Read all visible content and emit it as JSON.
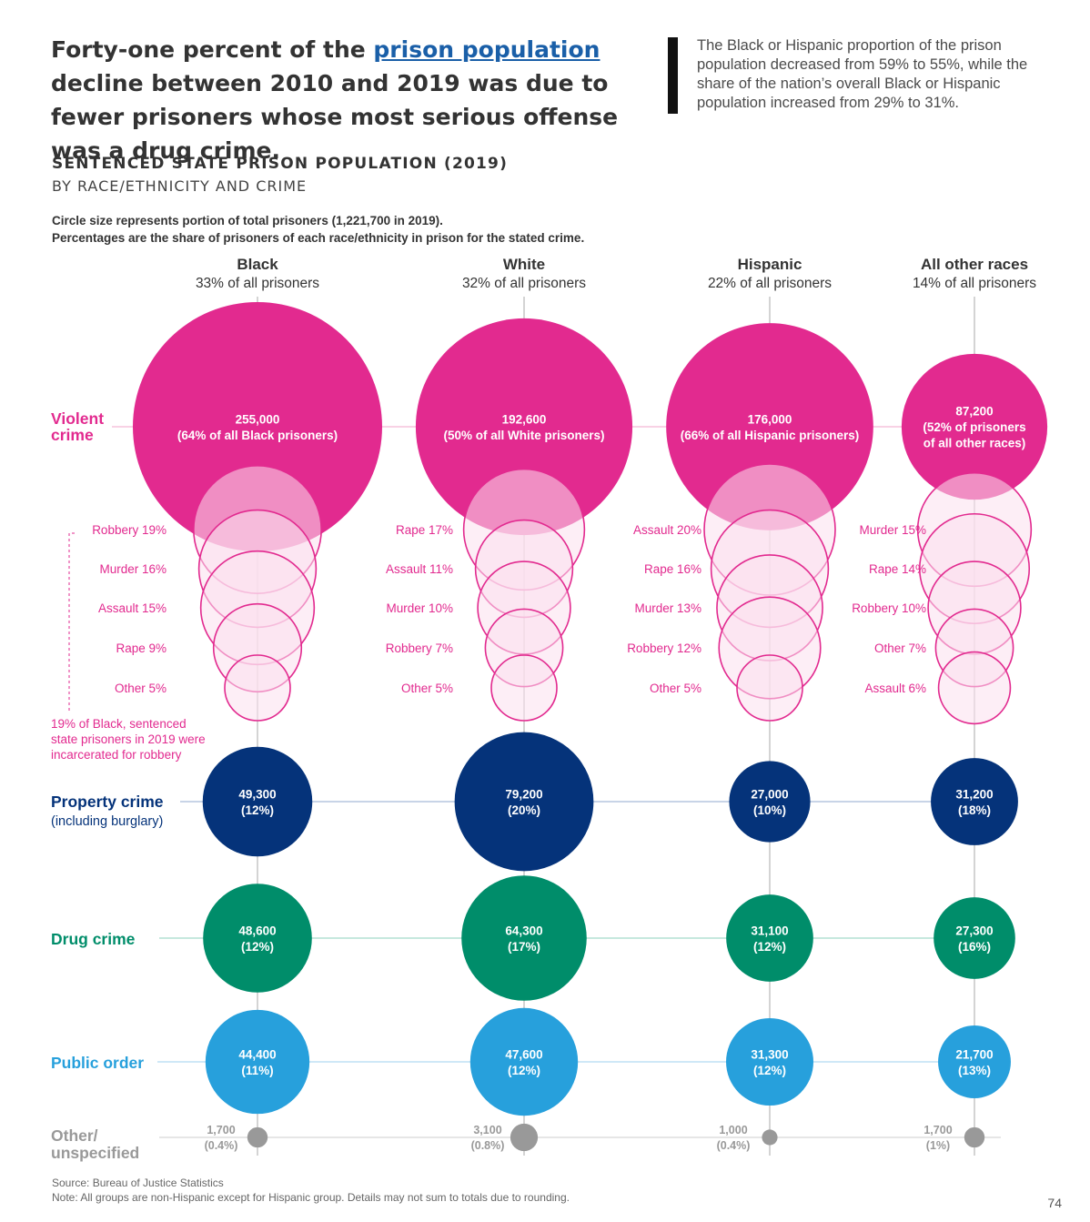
{
  "headline": {
    "pre": "Forty-one percent of the ",
    "link": "prison population",
    "post": " decline between 2010 and 2019 was due to fewer prisoners whose most serious offense was a drug crime."
  },
  "quote": "The Black or Hispanic proportion of the prison population decreased from 59% to 55%, while the share of the nation’s overall Black or Hispanic population increased from 29% to 31%.",
  "page_number": "74",
  "source": "Source: Bureau of Justice Statistics",
  "footnote": "Note: All groups are non-Hispanic except for Hispanic group. Details may not sum to totals due to rounding.",
  "chart_data": {
    "type": "bubble",
    "title": "SENTENCED STATE PRISON POPULATION (2019)",
    "subtitle": "BY RACE/ETHNICITY AND CRIME",
    "notes": [
      "Circle size represents portion of total prisoners (1,221,700 in 2019).",
      "Percentages are the share of prisoners of each race/ethnicity in prison for the stated crime."
    ],
    "groups": [
      {
        "name": "Black",
        "share": "33% of all prisoners"
      },
      {
        "name": "White",
        "share": "32% of all prisoners"
      },
      {
        "name": "Hispanic",
        "share": "22% of all prisoners"
      },
      {
        "name": "All other races",
        "share": "14% of all prisoners"
      }
    ],
    "row_labels": {
      "violent": [
        "Violent",
        "crime"
      ],
      "property": [
        "Property crime",
        "(including burglary)"
      ],
      "drug": [
        "Drug crime"
      ],
      "public": [
        "Public order"
      ],
      "other": [
        "Other/",
        "unspecified"
      ]
    },
    "rows": [
      {
        "key": "violent",
        "values": [
          255000,
          192600,
          176000,
          87200
        ],
        "labels": [
          "255,000",
          "192,600",
          "176,000",
          "87,200"
        ],
        "pct": [
          "(64% of all Black prisoners)",
          "(50% of all White prisoners)",
          "(66% of all Hispanic prisoners)",
          "(52% of prisoners|of all other races)"
        ]
      },
      {
        "key": "property",
        "values": [
          49300,
          79200,
          27000,
          31200
        ],
        "labels": [
          "49,300",
          "79,200",
          "27,000",
          "31,200"
        ],
        "pct": [
          "(12%)",
          "(20%)",
          "(10%)",
          "(18%)"
        ]
      },
      {
        "key": "drug",
        "values": [
          48600,
          64300,
          31100,
          27300
        ],
        "labels": [
          "48,600",
          "64,300",
          "31,100",
          "27,300"
        ],
        "pct": [
          "(12%)",
          "(17%)",
          "(12%)",
          "(16%)"
        ]
      },
      {
        "key": "public",
        "values": [
          44400,
          47600,
          31300,
          21700
        ],
        "labels": [
          "44,400",
          "47,600",
          "31,300",
          "21,700"
        ],
        "pct": [
          "(11%)",
          "(12%)",
          "(12%)",
          "(13%)"
        ]
      },
      {
        "key": "other",
        "values": [
          1700,
          3100,
          1000,
          1700
        ],
        "labels": [
          "1,700",
          "3,100",
          "1,000",
          "1,700"
        ],
        "pct": [
          "(0.4%)",
          "(0.8%)",
          "(0.4%)",
          "(1%)"
        ]
      }
    ],
    "violent_breakdown": [
      [
        {
          "label": "Robbery",
          "pct": 19
        },
        {
          "label": "Murder",
          "pct": 16
        },
        {
          "label": "Assault",
          "pct": 15
        },
        {
          "label": "Rape",
          "pct": 9
        },
        {
          "label": "Other",
          "pct": 5
        }
      ],
      [
        {
          "label": "Rape",
          "pct": 17
        },
        {
          "label": "Assault",
          "pct": 11
        },
        {
          "label": "Murder",
          "pct": 10
        },
        {
          "label": "Robbery",
          "pct": 7
        },
        {
          "label": "Other",
          "pct": 5
        }
      ],
      [
        {
          "label": "Assault",
          "pct": 20
        },
        {
          "label": "Rape",
          "pct": 16
        },
        {
          "label": "Murder",
          "pct": 13
        },
        {
          "label": "Robbery",
          "pct": 12
        },
        {
          "label": "Other",
          "pct": 5
        }
      ],
      [
        {
          "label": "Murder",
          "pct": 15
        },
        {
          "label": "Rape",
          "pct": 14
        },
        {
          "label": "Robbery",
          "pct": 10
        },
        {
          "label": "Other",
          "pct": 7
        },
        {
          "label": "Assault",
          "pct": 6
        }
      ]
    ],
    "annotation": "19% of Black, sentenced|state prisoners in 2019 were|incarcerated for robbery",
    "colors": {
      "violent": "#e22a8f",
      "violent_sub_fill": "#fbe0ee",
      "property": "#05337a",
      "drug": "#008d6a",
      "public": "#27a0dc",
      "other": "#999999",
      "link": "#1a5fa8"
    }
  }
}
